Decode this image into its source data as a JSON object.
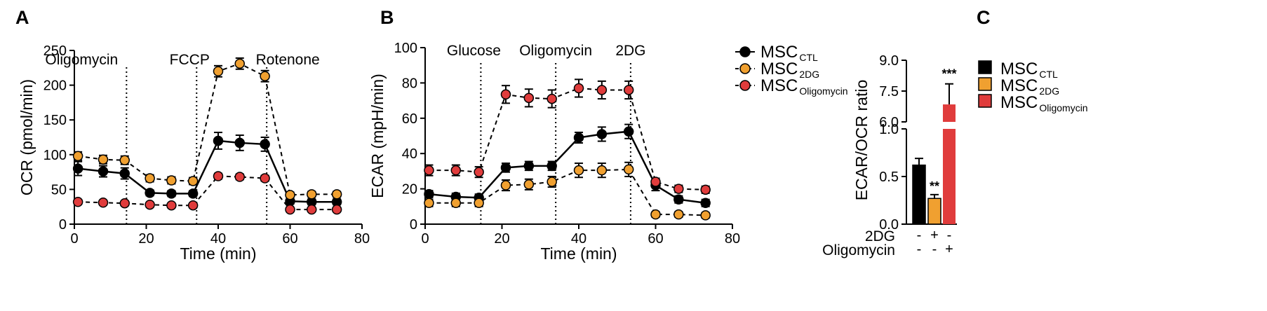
{
  "panels": {
    "A": "A",
    "B": "B",
    "C": "C"
  },
  "chart_data": [
    {
      "type": "line",
      "xlabel": "Time (min)",
      "ylabel": "OCR (pmol/min)",
      "xlim": [
        0,
        80
      ],
      "ylim": [
        0,
        250
      ],
      "xticks": [
        0,
        20,
        40,
        60,
        80
      ],
      "yticks": [
        0,
        50,
        100,
        150,
        200,
        250
      ],
      "injections": [
        {
          "label": "Oligomycin",
          "x": 14.5
        },
        {
          "label": "FCCP",
          "x": 34
        },
        {
          "label": "Rotenone",
          "x": 53.5
        }
      ],
      "series": [
        {
          "color": "#000000",
          "marker": "circle-black",
          "line": "solid",
          "x": [
            1,
            8,
            14,
            21,
            27,
            33,
            40,
            46,
            53,
            60,
            66,
            73
          ],
          "y": [
            80,
            76,
            73,
            45,
            44,
            44,
            120,
            117,
            115,
            33,
            32,
            32
          ],
          "err": [
            10,
            8,
            8,
            4,
            4,
            4,
            12,
            11,
            10,
            4,
            4,
            4
          ]
        },
        {
          "color": "#f0a030",
          "marker": "circle-orange",
          "line": "dashed",
          "x": [
            1,
            8,
            14,
            21,
            27,
            33,
            40,
            46,
            53,
            60,
            66,
            73
          ],
          "y": [
            98,
            93,
            92,
            66,
            63,
            62,
            220,
            231,
            213,
            42,
            43,
            43
          ],
          "err": [
            6,
            6,
            6,
            5,
            5,
            5,
            8,
            8,
            8,
            4,
            4,
            4
          ]
        },
        {
          "color": "#e03c3c",
          "marker": "circle-red",
          "line": "dashed",
          "x": [
            1,
            8,
            14,
            21,
            27,
            33,
            40,
            46,
            53,
            60,
            66,
            73
          ],
          "y": [
            32,
            31,
            30,
            28,
            27,
            27,
            69,
            68,
            66,
            21,
            21,
            21
          ],
          "err": [
            3,
            3,
            3,
            3,
            3,
            3,
            4,
            4,
            4,
            2,
            2,
            2
          ]
        }
      ]
    },
    {
      "type": "line",
      "xlabel": "Time (min)",
      "ylabel": "ECAR (mpH/min)",
      "xlim": [
        0,
        80
      ],
      "ylim": [
        0,
        100
      ],
      "xticks": [
        0,
        20,
        40,
        60,
        80
      ],
      "yticks": [
        0,
        20,
        40,
        60,
        80,
        100
      ],
      "injections": [
        {
          "label": "Glucose",
          "x": 14.5
        },
        {
          "label": "Oligomycin",
          "x": 34
        },
        {
          "label": "2DG",
          "x": 53.5
        }
      ],
      "legend_position": "top-right",
      "legend": [
        {
          "main": "MSC",
          "sub": "CTL",
          "color": "#000000"
        },
        {
          "main": "MSC",
          "sub": "2DG",
          "color": "#f0a030"
        },
        {
          "main": "MSC",
          "sub": "Oligomycin",
          "color": "#e03c3c"
        }
      ],
      "series": [
        {
          "color": "#000000",
          "marker": "circle-black",
          "line": "solid",
          "x": [
            1,
            8,
            14,
            21,
            27,
            33,
            40,
            46,
            53,
            60,
            66,
            73
          ],
          "y": [
            17,
            15.5,
            15,
            32,
            33,
            33,
            49,
            51,
            52.5,
            22,
            14,
            12
          ],
          "err": [
            2,
            2,
            2,
            2.5,
            2.5,
            2.5,
            3,
            4,
            4,
            3,
            2,
            2
          ]
        },
        {
          "color": "#f0a030",
          "marker": "circle-orange",
          "line": "dashed",
          "x": [
            1,
            8,
            14,
            21,
            27,
            33,
            40,
            46,
            53,
            60,
            66,
            73
          ],
          "y": [
            12,
            12,
            12,
            22,
            22.5,
            24,
            30.5,
            30.5,
            31,
            5.5,
            5.5,
            5
          ],
          "err": [
            2,
            2,
            2,
            3,
            3,
            3,
            4,
            4,
            4,
            1.5,
            1.5,
            1.5
          ]
        },
        {
          "color": "#e03c3c",
          "marker": "circle-red",
          "line": "dashed",
          "x": [
            1,
            8,
            14,
            21,
            27,
            33,
            40,
            46,
            53,
            60,
            66,
            73
          ],
          "y": [
            30.5,
            30.5,
            29.5,
            73.5,
            71.5,
            71,
            77,
            76,
            76,
            24,
            20,
            19.5
          ],
          "err": [
            3,
            3,
            3,
            5,
            5,
            5,
            5,
            5,
            5,
            2,
            2,
            2
          ]
        }
      ]
    },
    {
      "type": "bar",
      "ylabel": "ECAR/OCR ratio",
      "yaxis_break": true,
      "ylim_lower": [
        0,
        1.0
      ],
      "ylim_upper": [
        6.0,
        9.0
      ],
      "yticks_lower": [
        "0.0",
        "0.5",
        "1.0"
      ],
      "yticks_upper": [
        "6.0",
        "7.5",
        "9.0"
      ],
      "bars": [
        {
          "value": 0.62,
          "err": 0.07,
          "color": "#000000",
          "significance": ""
        },
        {
          "value": 0.27,
          "err": 0.04,
          "color": "#f0a030",
          "significance": "**"
        },
        {
          "value": 6.85,
          "err": 1.0,
          "color": "#e03c3c",
          "significance": "***"
        }
      ],
      "conditions": [
        {
          "label": "2DG",
          "values": [
            "-",
            "+",
            "-"
          ]
        },
        {
          "label": "Oligomycin",
          "values": [
            "-",
            "-",
            "+"
          ]
        }
      ],
      "legend_position": "right",
      "legend": [
        {
          "main": "MSC",
          "sub": "CTL",
          "color": "#000000"
        },
        {
          "main": "MSC",
          "sub": "2DG",
          "color": "#f0a030"
        },
        {
          "main": "MSC",
          "sub": "Oligomycin",
          "color": "#e03c3c"
        }
      ]
    }
  ]
}
